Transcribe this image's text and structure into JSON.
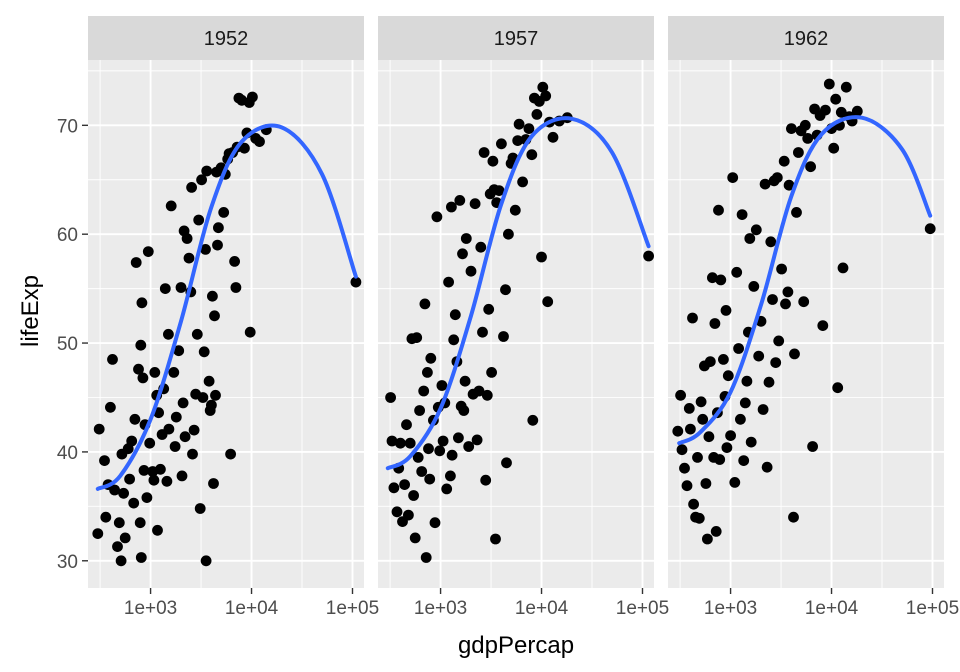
{
  "chart_data": {
    "type": "scatter",
    "title": "",
    "xlabel": "gdpPercap",
    "ylabel": "lifeExp",
    "x_scale": "log10",
    "xlim": [
      240,
      130000
    ],
    "ylim": [
      27.5,
      76
    ],
    "x_ticks": [
      1000,
      10000,
      100000
    ],
    "x_tick_labels": [
      "1e+03",
      "1e+04",
      "1e+05"
    ],
    "y_ticks": [
      30,
      40,
      50,
      60,
      70
    ],
    "y_tick_labels": [
      "30",
      "40",
      "50",
      "60",
      "70"
    ],
    "grid": true,
    "colors": {
      "panel_bg": "#ebebeb",
      "strip_bg": "#d9d9d9",
      "grid": "#ffffff",
      "points": "#000000",
      "smooth_line": "#3366ff"
    },
    "facets": [
      {
        "label": "1952",
        "trend": [
          [
            300,
            36.6
          ],
          [
            500,
            37.8
          ],
          [
            1000,
            43
          ],
          [
            2000,
            52
          ],
          [
            4000,
            62.5
          ],
          [
            8000,
            68.5
          ],
          [
            20000,
            69.8
          ],
          [
            50000,
            65.5
          ],
          [
            108000,
            56.1
          ]
        ],
        "points": [
          [
            300,
            32.5
          ],
          [
            310,
            42.1
          ],
          [
            350,
            39.2
          ],
          [
            360,
            34.0
          ],
          [
            380,
            37.0
          ],
          [
            400,
            44.1
          ],
          [
            420,
            48.5
          ],
          [
            440,
            36.5
          ],
          [
            470,
            31.3
          ],
          [
            490,
            33.5
          ],
          [
            510,
            30.0
          ],
          [
            520,
            39.8
          ],
          [
            540,
            36.2
          ],
          [
            560,
            32.1
          ],
          [
            600,
            40.3
          ],
          [
            620,
            37.5
          ],
          [
            650,
            41.0
          ],
          [
            680,
            35.3
          ],
          [
            700,
            43.0
          ],
          [
            720,
            57.4
          ],
          [
            760,
            47.6
          ],
          [
            790,
            33.5
          ],
          [
            800,
            49.8
          ],
          [
            810,
            30.3
          ],
          [
            820,
            53.7
          ],
          [
            840,
            46.8
          ],
          [
            860,
            38.3
          ],
          [
            880,
            42.5
          ],
          [
            920,
            35.8
          ],
          [
            950,
            58.4
          ],
          [
            980,
            40.8
          ],
          [
            1050,
            38.2
          ],
          [
            1080,
            37.4
          ],
          [
            1100,
            47.3
          ],
          [
            1150,
            45.2
          ],
          [
            1170,
            32.8
          ],
          [
            1200,
            43.6
          ],
          [
            1250,
            38.4
          ],
          [
            1300,
            41.6
          ],
          [
            1350,
            45.8
          ],
          [
            1400,
            55.0
          ],
          [
            1450,
            37.3
          ],
          [
            1500,
            50.8
          ],
          [
            1520,
            42.1
          ],
          [
            1600,
            62.6
          ],
          [
            1700,
            47.3
          ],
          [
            1750,
            40.5
          ],
          [
            1800,
            43.2
          ],
          [
            1900,
            49.3
          ],
          [
            2000,
            55.1
          ],
          [
            2050,
            37.8
          ],
          [
            2100,
            44.5
          ],
          [
            2150,
            60.3
          ],
          [
            2200,
            41.4
          ],
          [
            2300,
            59.6
          ],
          [
            2400,
            57.8
          ],
          [
            2500,
            54.7
          ],
          [
            2550,
            64.3
          ],
          [
            2600,
            39.8
          ],
          [
            2700,
            42.0
          ],
          [
            2800,
            45.3
          ],
          [
            2900,
            50.8
          ],
          [
            3000,
            61.3
          ],
          [
            3100,
            34.8
          ],
          [
            3200,
            65.0
          ],
          [
            3300,
            45.0
          ],
          [
            3400,
            49.2
          ],
          [
            3500,
            58.6
          ],
          [
            3550,
            30.0
          ],
          [
            3600,
            65.8
          ],
          [
            3800,
            46.5
          ],
          [
            3900,
            43.8
          ],
          [
            4000,
            44.3
          ],
          [
            4100,
            54.3
          ],
          [
            4200,
            37.1
          ],
          [
            4300,
            52.5
          ],
          [
            4400,
            45.2
          ],
          [
            4500,
            65.7
          ],
          [
            4600,
            59.0
          ],
          [
            4700,
            60.6
          ],
          [
            5000,
            66.1
          ],
          [
            5300,
            62.0
          ],
          [
            5500,
            65.5
          ],
          [
            5800,
            66.9
          ],
          [
            6000,
            67.4
          ],
          [
            6200,
            39.8
          ],
          [
            6500,
            67.5
          ],
          [
            6800,
            57.5
          ],
          [
            7000,
            55.1
          ],
          [
            7200,
            68.0
          ],
          [
            7500,
            72.5
          ],
          [
            8000,
            72.3
          ],
          [
            8500,
            67.9
          ],
          [
            9000,
            69.3
          ],
          [
            9500,
            72.1
          ],
          [
            9700,
            51.0
          ],
          [
            10200,
            72.6
          ],
          [
            11000,
            68.8
          ],
          [
            12000,
            68.5
          ],
          [
            14000,
            69.6
          ],
          [
            108000,
            55.6
          ]
        ]
      },
      {
        "label": "1957",
        "trend": [
          [
            300,
            38.5
          ],
          [
            500,
            39.6
          ],
          [
            1000,
            44
          ],
          [
            2000,
            52.5
          ],
          [
            4000,
            62.8
          ],
          [
            8000,
            69
          ],
          [
            20000,
            70.6
          ],
          [
            50000,
            67.5
          ],
          [
            115000,
            58.9
          ]
        ],
        "points": [
          [
            320,
            45.0
          ],
          [
            330,
            41.0
          ],
          [
            345,
            36.7
          ],
          [
            370,
            34.5
          ],
          [
            385,
            38.5
          ],
          [
            400,
            40.8
          ],
          [
            420,
            33.6
          ],
          [
            440,
            37.0
          ],
          [
            460,
            42.5
          ],
          [
            480,
            34.2
          ],
          [
            500,
            40.8
          ],
          [
            520,
            50.4
          ],
          [
            540,
            36.0
          ],
          [
            560,
            32.1
          ],
          [
            580,
            50.5
          ],
          [
            600,
            39.5
          ],
          [
            620,
            43.8
          ],
          [
            650,
            38.2
          ],
          [
            680,
            45.6
          ],
          [
            700,
            53.6
          ],
          [
            720,
            30.3
          ],
          [
            740,
            47.3
          ],
          [
            760,
            40.3
          ],
          [
            780,
            37.5
          ],
          [
            800,
            48.6
          ],
          [
            850,
            42.9
          ],
          [
            880,
            33.5
          ],
          [
            920,
            61.6
          ],
          [
            950,
            44.1
          ],
          [
            980,
            40.1
          ],
          [
            1030,
            46.1
          ],
          [
            1060,
            41.0
          ],
          [
            1100,
            44.5
          ],
          [
            1150,
            36.6
          ],
          [
            1200,
            55.6
          ],
          [
            1250,
            37.8
          ],
          [
            1280,
            62.5
          ],
          [
            1300,
            39.7
          ],
          [
            1350,
            50.3
          ],
          [
            1400,
            52.6
          ],
          [
            1450,
            48.3
          ],
          [
            1500,
            41.3
          ],
          [
            1550,
            63.1
          ],
          [
            1600,
            44.2
          ],
          [
            1650,
            58.2
          ],
          [
            1700,
            43.8
          ],
          [
            1750,
            46.5
          ],
          [
            1800,
            59.6
          ],
          [
            1900,
            40.5
          ],
          [
            2000,
            56.6
          ],
          [
            2100,
            45.3
          ],
          [
            2200,
            62.8
          ],
          [
            2300,
            41.1
          ],
          [
            2400,
            45.6
          ],
          [
            2500,
            58.8
          ],
          [
            2600,
            51.0
          ],
          [
            2700,
            67.5
          ],
          [
            2800,
            37.4
          ],
          [
            2900,
            45.2
          ],
          [
            3000,
            53.1
          ],
          [
            3100,
            63.7
          ],
          [
            3200,
            47.3
          ],
          [
            3300,
            66.7
          ],
          [
            3400,
            64.1
          ],
          [
            3500,
            32.0
          ],
          [
            3600,
            62.9
          ],
          [
            3800,
            64.0
          ],
          [
            4000,
            68.3
          ],
          [
            4200,
            50.6
          ],
          [
            4400,
            54.9
          ],
          [
            4500,
            39.0
          ],
          [
            4700,
            60.0
          ],
          [
            5000,
            66.5
          ],
          [
            5200,
            67.0
          ],
          [
            5500,
            62.2
          ],
          [
            5800,
            68.6
          ],
          [
            6000,
            70.1
          ],
          [
            6500,
            64.8
          ],
          [
            7000,
            68.7
          ],
          [
            7500,
            69.7
          ],
          [
            8000,
            67.3
          ],
          [
            8200,
            42.9
          ],
          [
            8500,
            72.5
          ],
          [
            9000,
            71.0
          ],
          [
            9500,
            72.2
          ],
          [
            10000,
            57.9
          ],
          [
            10300,
            73.5
          ],
          [
            11000,
            72.7
          ],
          [
            11500,
            53.8
          ],
          [
            12000,
            70.3
          ],
          [
            13000,
            68.9
          ],
          [
            15000,
            70.4
          ],
          [
            18000,
            70.7
          ],
          [
            115000,
            58.0
          ]
        ]
      },
      {
        "label": "1962",
        "trend": [
          [
            310,
            40.8
          ],
          [
            500,
            41.8
          ],
          [
            1000,
            45.5
          ],
          [
            2000,
            53.5
          ],
          [
            4000,
            63.5
          ],
          [
            8000,
            69.2
          ],
          [
            20000,
            70.7
          ],
          [
            50000,
            67.8
          ],
          [
            95000,
            61.7
          ]
        ],
        "points": [
          [
            300,
            41.9
          ],
          [
            320,
            45.2
          ],
          [
            330,
            40.2
          ],
          [
            350,
            38.5
          ],
          [
            370,
            36.9
          ],
          [
            390,
            44.0
          ],
          [
            400,
            42.1
          ],
          [
            420,
            52.3
          ],
          [
            430,
            35.2
          ],
          [
            450,
            34.0
          ],
          [
            470,
            39.5
          ],
          [
            490,
            33.9
          ],
          [
            510,
            44.6
          ],
          [
            530,
            43.0
          ],
          [
            550,
            47.9
          ],
          [
            570,
            37.1
          ],
          [
            590,
            32.0
          ],
          [
            610,
            41.4
          ],
          [
            630,
            48.3
          ],
          [
            660,
            56.0
          ],
          [
            680,
            39.5
          ],
          [
            700,
            51.8
          ],
          [
            720,
            32.7
          ],
          [
            740,
            43.6
          ],
          [
            760,
            62.2
          ],
          [
            780,
            39.3
          ],
          [
            800,
            55.8
          ],
          [
            850,
            48.5
          ],
          [
            880,
            45.1
          ],
          [
            900,
            53.0
          ],
          [
            920,
            40.4
          ],
          [
            950,
            47.0
          ],
          [
            1000,
            41.5
          ],
          [
            1050,
            65.2
          ],
          [
            1100,
            37.2
          ],
          [
            1150,
            56.5
          ],
          [
            1200,
            49.5
          ],
          [
            1250,
            43.0
          ],
          [
            1300,
            61.8
          ],
          [
            1350,
            39.2
          ],
          [
            1400,
            44.5
          ],
          [
            1450,
            46.5
          ],
          [
            1500,
            51.0
          ],
          [
            1550,
            59.6
          ],
          [
            1600,
            40.9
          ],
          [
            1700,
            55.2
          ],
          [
            1800,
            60.4
          ],
          [
            1900,
            48.8
          ],
          [
            2000,
            52.0
          ],
          [
            2100,
            43.9
          ],
          [
            2200,
            64.6
          ],
          [
            2300,
            38.6
          ],
          [
            2400,
            46.4
          ],
          [
            2500,
            59.3
          ],
          [
            2600,
            54.0
          ],
          [
            2700,
            64.9
          ],
          [
            2800,
            48.2
          ],
          [
            2900,
            65.2
          ],
          [
            3000,
            50.2
          ],
          [
            3200,
            56.8
          ],
          [
            3400,
            66.7
          ],
          [
            3500,
            53.6
          ],
          [
            3700,
            54.7
          ],
          [
            3800,
            64.5
          ],
          [
            4000,
            69.7
          ],
          [
            4200,
            34.0
          ],
          [
            4300,
            49.0
          ],
          [
            4500,
            62.0
          ],
          [
            4700,
            67.5
          ],
          [
            5000,
            69.5
          ],
          [
            5300,
            53.8
          ],
          [
            5500,
            70.0
          ],
          [
            5800,
            68.8
          ],
          [
            6200,
            66.2
          ],
          [
            6500,
            40.5
          ],
          [
            6800,
            71.5
          ],
          [
            7200,
            69.1
          ],
          [
            7700,
            70.9
          ],
          [
            8200,
            51.6
          ],
          [
            8700,
            71.4
          ],
          [
            9500,
            73.8
          ],
          [
            10000,
            69.7
          ],
          [
            10500,
            67.9
          ],
          [
            11000,
            72.4
          ],
          [
            11500,
            45.9
          ],
          [
            12000,
            70.0
          ],
          [
            12500,
            71.2
          ],
          [
            13000,
            56.9
          ],
          [
            14000,
            73.5
          ],
          [
            15000,
            70.8
          ],
          [
            16000,
            70.4
          ],
          [
            18000,
            71.3
          ],
          [
            95000,
            60.5
          ]
        ]
      }
    ]
  }
}
